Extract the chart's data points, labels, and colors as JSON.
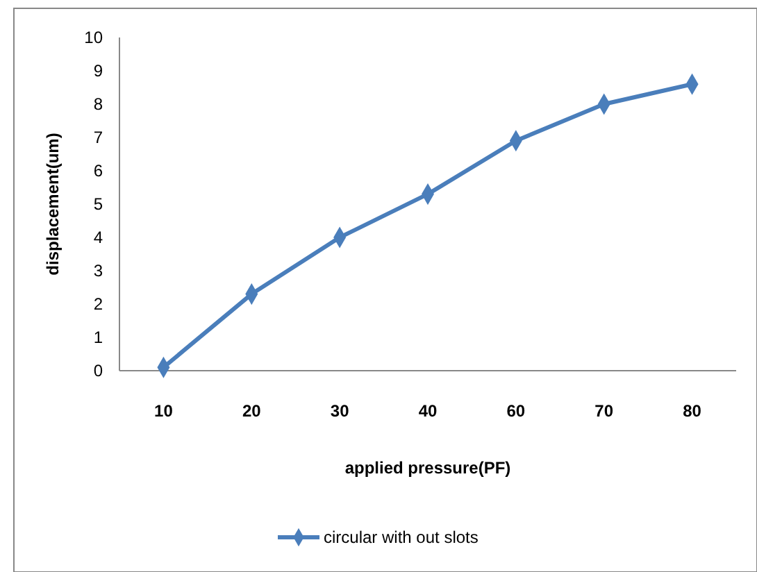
{
  "chart_data": {
    "type": "line",
    "xlabel": "applied pressure(PF)",
    "ylabel": "displacement(um)",
    "categories": [
      "10",
      "20",
      "30",
      "40",
      "60",
      "70",
      "80"
    ],
    "series": [
      {
        "name": "circular with out slots",
        "color": "#4a7ebb",
        "values": [
          0.1,
          2.3,
          4.0,
          5.3,
          6.9,
          8.0,
          8.6
        ]
      }
    ],
    "ylim": [
      0,
      10
    ],
    "yticks": [
      0,
      1,
      2,
      3,
      4,
      5,
      6,
      7,
      8,
      9,
      10
    ],
    "grid": false,
    "legend": "bottom",
    "marker": "diamond",
    "line_style": "solid"
  }
}
